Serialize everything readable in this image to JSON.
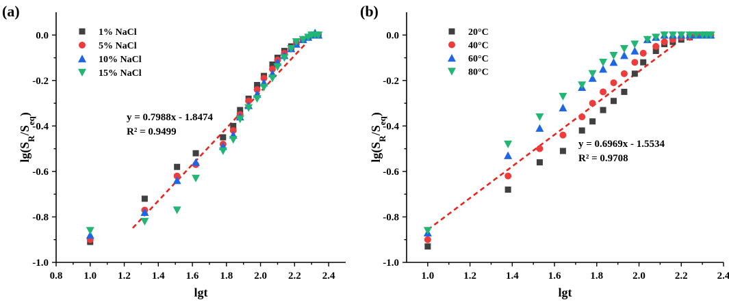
{
  "chart_data": [
    {
      "panel_label": "(a)",
      "type": "scatter",
      "xlabel": "lgt",
      "ylabel": "lg(SR/Seq)",
      "ylabel_parts": {
        "base": "lg(S",
        "sub1": "R",
        "mid": "/S",
        "sub2": "eq",
        "end": ")"
      },
      "xlim": [
        0.8,
        2.5
      ],
      "ylim": [
        -1.0,
        0.1
      ],
      "xticks": [
        0.8,
        1.0,
        1.2,
        1.4,
        1.6,
        1.8,
        2.0,
        2.2,
        2.4
      ],
      "xtick_labels": [
        "0.8",
        "1.0",
        "1.2",
        "1.4",
        "1.6",
        "1.8",
        "2.0",
        "2.2",
        "2.4"
      ],
      "yticks": [
        -1.0,
        -0.8,
        -0.6,
        -0.4,
        -0.2,
        0.0
      ],
      "ytick_labels": [
        "-1.0",
        "-0.8",
        "-0.6",
        "-0.4",
        "-0.2",
        "0.0"
      ],
      "legend_position": "top-left",
      "series": [
        {
          "name": "1% NaCl",
          "marker": "square",
          "color": "#404040",
          "x": [
            1.0,
            1.32,
            1.51,
            1.62,
            1.78,
            1.84,
            1.88,
            1.93,
            1.98,
            2.02,
            2.07,
            2.1,
            2.14,
            2.18,
            2.21,
            2.25,
            2.28,
            2.3,
            2.32,
            2.34
          ],
          "y": [
            -0.91,
            -0.72,
            -0.58,
            -0.52,
            -0.45,
            -0.4,
            -0.33,
            -0.28,
            -0.22,
            -0.18,
            -0.13,
            -0.1,
            -0.07,
            -0.05,
            -0.03,
            -0.02,
            -0.01,
            0.0,
            0.0,
            0.0
          ]
        },
        {
          "name": "5% NaCl",
          "marker": "circle",
          "color": "#ee3b3b",
          "x": [
            1.0,
            1.32,
            1.51,
            1.62,
            1.78,
            1.84,
            1.88,
            1.93,
            1.98,
            2.02,
            2.07,
            2.1,
            2.14,
            2.18,
            2.21,
            2.25,
            2.28,
            2.3,
            2.32,
            2.34
          ],
          "y": [
            -0.9,
            -0.77,
            -0.62,
            -0.57,
            -0.48,
            -0.42,
            -0.35,
            -0.29,
            -0.24,
            -0.19,
            -0.15,
            -0.11,
            -0.08,
            -0.06,
            -0.04,
            -0.02,
            -0.01,
            0.0,
            0.0,
            0.0
          ]
        },
        {
          "name": "10% NaCl",
          "marker": "triangle-up",
          "color": "#1f66e5",
          "x": [
            1.0,
            1.32,
            1.51,
            1.62,
            1.78,
            1.84,
            1.88,
            1.93,
            1.98,
            2.02,
            2.07,
            2.1,
            2.14,
            2.18,
            2.21,
            2.25,
            2.28,
            2.3,
            2.32,
            2.34
          ],
          "y": [
            -0.88,
            -0.78,
            -0.64,
            -0.56,
            -0.49,
            -0.44,
            -0.36,
            -0.31,
            -0.26,
            -0.21,
            -0.17,
            -0.12,
            -0.09,
            -0.06,
            -0.04,
            -0.02,
            -0.01,
            0.0,
            0.01,
            0.0
          ]
        },
        {
          "name": "15% NaCl",
          "marker": "triangle-down",
          "color": "#22b573",
          "x": [
            1.0,
            1.32,
            1.51,
            1.62,
            1.78,
            1.84,
            1.88,
            1.93,
            1.98,
            2.02,
            2.07,
            2.1,
            2.14,
            2.18,
            2.21,
            2.25,
            2.28,
            2.3,
            2.32,
            2.34
          ],
          "y": [
            -0.86,
            -0.82,
            -0.77,
            -0.63,
            -0.51,
            -0.46,
            -0.37,
            -0.32,
            -0.28,
            -0.23,
            -0.19,
            -0.14,
            -0.1,
            -0.06,
            -0.03,
            -0.02,
            -0.01,
            0.0,
            0.0,
            0.0
          ]
        }
      ],
      "fit": {
        "slope": 0.7988,
        "intercept": -1.8474,
        "x_range": [
          1.25,
          2.26
        ]
      },
      "annotations": [
        "y = 0.7988x - 1.8474",
        "R² = 0.9499"
      ]
    },
    {
      "panel_label": "(b)",
      "type": "scatter",
      "xlabel": "lgt",
      "ylabel": "lg(SR/Seq)",
      "ylabel_parts": {
        "base": "lg(S",
        "sub1": "R",
        "mid": "/S",
        "sub2": "eq",
        "end": ")"
      },
      "xlim": [
        0.9,
        2.4
      ],
      "ylim": [
        -1.0,
        0.1
      ],
      "xticks": [
        1.0,
        1.2,
        1.4,
        1.6,
        1.8,
        2.0,
        2.2,
        2.4
      ],
      "xtick_labels": [
        "1.0",
        "1.2",
        "1.4",
        "1.6",
        "1.8",
        "2.0",
        "2.2",
        "2.4"
      ],
      "yticks": [
        -1.0,
        -0.8,
        -0.6,
        -0.4,
        -0.2,
        0.0
      ],
      "ytick_labels": [
        "-1.0",
        "-0.8",
        "-0.6",
        "-0.4",
        "-0.2",
        "0.0"
      ],
      "legend_position": "top-left",
      "series": [
        {
          "name": "20°C",
          "marker": "square",
          "color": "#404040",
          "x": [
            1.0,
            1.38,
            1.53,
            1.64,
            1.73,
            1.78,
            1.83,
            1.88,
            1.93,
            1.98,
            2.02,
            2.08,
            2.12,
            2.16,
            2.2,
            2.24,
            2.27,
            2.3,
            2.32,
            2.34
          ],
          "y": [
            -0.93,
            -0.68,
            -0.56,
            -0.51,
            -0.42,
            -0.38,
            -0.33,
            -0.29,
            -0.25,
            -0.17,
            -0.12,
            -0.07,
            -0.04,
            -0.03,
            -0.02,
            -0.01,
            0.0,
            0.0,
            0.0,
            0.0
          ]
        },
        {
          "name": "40°C",
          "marker": "circle",
          "color": "#ee3b3b",
          "x": [
            1.0,
            1.38,
            1.53,
            1.64,
            1.73,
            1.78,
            1.83,
            1.88,
            1.93,
            1.98,
            2.02,
            2.08,
            2.12,
            2.16,
            2.2,
            2.24,
            2.27,
            2.3,
            2.32,
            2.34
          ],
          "y": [
            -0.9,
            -0.62,
            -0.5,
            -0.44,
            -0.36,
            -0.3,
            -0.25,
            -0.21,
            -0.17,
            -0.12,
            -0.08,
            -0.05,
            -0.03,
            -0.02,
            -0.01,
            -0.01,
            0.0,
            0.0,
            0.0,
            0.0
          ]
        },
        {
          "name": "60°C",
          "marker": "triangle-up",
          "color": "#1f66e5",
          "x": [
            1.0,
            1.38,
            1.53,
            1.64,
            1.73,
            1.78,
            1.83,
            1.88,
            1.93,
            1.98,
            2.04,
            2.08,
            2.12,
            2.16,
            2.2,
            2.24,
            2.27,
            2.3,
            2.32,
            2.34
          ],
          "y": [
            -0.87,
            -0.53,
            -0.41,
            -0.32,
            -0.23,
            -0.19,
            -0.15,
            -0.12,
            -0.09,
            -0.07,
            -0.02,
            -0.01,
            0.0,
            0.0,
            0.0,
            0.0,
            0.0,
            0.0,
            0.0,
            0.0
          ]
        },
        {
          "name": "80°C",
          "marker": "triangle-down",
          "color": "#22b573",
          "x": [
            1.0,
            1.38,
            1.53,
            1.64,
            1.73,
            1.78,
            1.83,
            1.88,
            1.93,
            1.98,
            2.04,
            2.08,
            2.12,
            2.16,
            2.2,
            2.24,
            2.27,
            2.3,
            2.32,
            2.34
          ],
          "y": [
            -0.86,
            -0.48,
            -0.36,
            -0.27,
            -0.22,
            -0.17,
            -0.12,
            -0.09,
            -0.06,
            -0.04,
            -0.02,
            -0.01,
            0.0,
            0.0,
            0.0,
            0.0,
            0.0,
            0.0,
            0.0,
            0.0
          ]
        }
      ],
      "fit": {
        "slope": 0.6969,
        "intercept": -1.5534,
        "x_range": [
          1.0,
          2.17
        ]
      },
      "annotations": [
        "y = 0.6969x - 1.5534",
        "R² = 0.9708"
      ]
    }
  ]
}
